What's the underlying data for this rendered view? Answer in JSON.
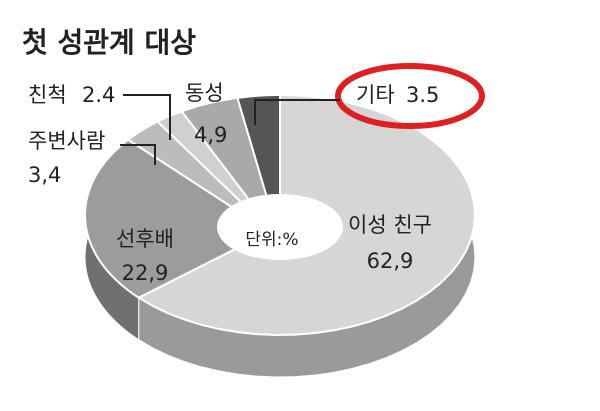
{
  "chart_data": {
    "type": "donut",
    "title": "첫 성관계 대상",
    "center_label": "단위:%",
    "categories": [
      "이성 친구",
      "선후배",
      "주변사람",
      "친척",
      "동성",
      "기타"
    ],
    "values": [
      62.9,
      22.9,
      3.4,
      2.4,
      4.9,
      3.5
    ],
    "value_labels": [
      "62,9",
      "22,9",
      "3,4",
      "2.4",
      "4,9",
      "3.5"
    ],
    "colors": [
      "#d6d6d6",
      "#9c9c9c",
      "#bcbcbc",
      "#d0d0d0",
      "#a9a9a9",
      "#555555"
    ]
  }
}
